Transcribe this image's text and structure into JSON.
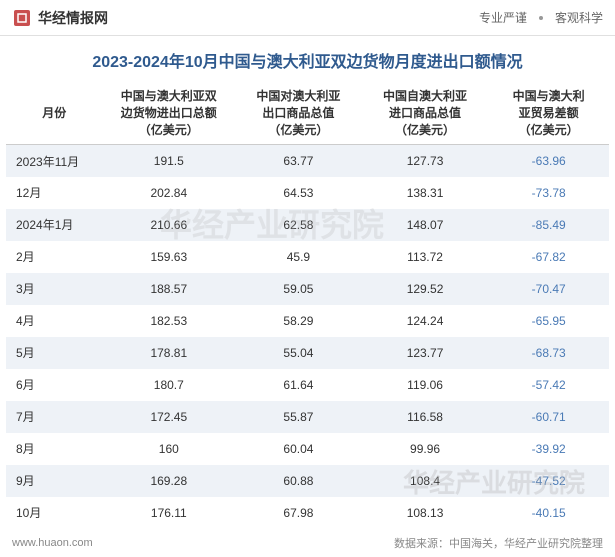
{
  "header": {
    "logo_text": "华经情报网",
    "right_text_1": "专业严谨",
    "right_text_2": "客观科学"
  },
  "title": "2023-2024年10月中国与澳大利亚双边货物月度进出口额情况",
  "table": {
    "columns": [
      "月份",
      "中国与澳大利亚双边货物进出口总额（亿美元）",
      "中国对澳大利亚出口商品总值（亿美元）",
      "中国自澳大利亚进口商品总值（亿美元）",
      "中国与澳大利亚贸易差额（亿美元）"
    ],
    "col_widths": [
      "16%",
      "22%",
      "21%",
      "21%",
      "20%"
    ],
    "rows": [
      {
        "month": "2023年11月",
        "total": "191.5",
        "export": "63.77",
        "import": "127.73",
        "balance": "-63.96"
      },
      {
        "month": "12月",
        "total": "202.84",
        "export": "64.53",
        "import": "138.31",
        "balance": "-73.78"
      },
      {
        "month": "2024年1月",
        "total": "210.66",
        "export": "62.58",
        "import": "148.07",
        "balance": "-85.49"
      },
      {
        "month": "2月",
        "total": "159.63",
        "export": "45.9",
        "import": "113.72",
        "balance": "-67.82"
      },
      {
        "month": "3月",
        "total": "188.57",
        "export": "59.05",
        "import": "129.52",
        "balance": "-70.47"
      },
      {
        "month": "4月",
        "total": "182.53",
        "export": "58.29",
        "import": "124.24",
        "balance": "-65.95"
      },
      {
        "month": "5月",
        "total": "178.81",
        "export": "55.04",
        "import": "123.77",
        "balance": "-68.73"
      },
      {
        "month": "6月",
        "total": "180.7",
        "export": "61.64",
        "import": "119.06",
        "balance": "-57.42"
      },
      {
        "month": "7月",
        "total": "172.45",
        "export": "55.87",
        "import": "116.58",
        "balance": "-60.71"
      },
      {
        "month": "8月",
        "total": "160",
        "export": "60.04",
        "import": "99.96",
        "balance": "-39.92"
      },
      {
        "month": "9月",
        "total": "169.28",
        "export": "60.88",
        "import": "108.4",
        "balance": "-47.52"
      },
      {
        "month": "10月",
        "total": "176.11",
        "export": "67.98",
        "import": "108.13",
        "balance": "-40.15"
      }
    ]
  },
  "footer": {
    "url": "www.huaon.com",
    "source": "数据来源：中国海关，华经产业研究院整理"
  },
  "watermark": {
    "text1": "华经产业研究院",
    "text2": "华经产业研究院"
  },
  "colors": {
    "title_color": "#2f5a8e",
    "negative_color": "#4a7ab5",
    "row_even_bg": "#eef2f7",
    "row_odd_bg": "#ffffff",
    "header_border": "#cccccc",
    "text_color": "#333333",
    "footer_color": "#888888"
  }
}
